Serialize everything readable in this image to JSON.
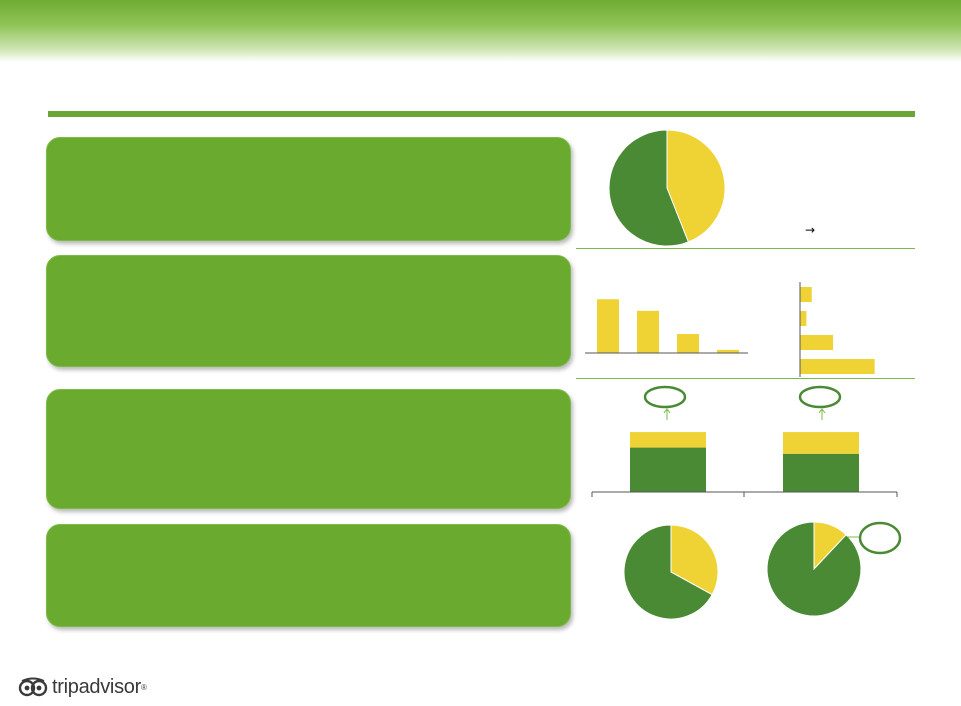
{
  "colors": {
    "brand_green": "#6aaa2f",
    "dark_green": "#4a8a35",
    "yellow": "#efd335",
    "rule_green": "#6aa635"
  },
  "footer": {
    "logo_text": "tripadvisor",
    "logo_mark": "®",
    "logo_icon": "owl-eyes-icon"
  },
  "arrow_symbol": "→",
  "chart_data": [
    {
      "type": "pie",
      "slices": [
        {
          "color": "yellow",
          "value": 0.44
        },
        {
          "color": "dark_green",
          "value": 0.56
        }
      ]
    },
    {
      "type": "bar",
      "orientation": "vertical",
      "values": [
        51,
        40,
        18,
        3
      ]
    },
    {
      "type": "bar",
      "orientation": "horizontal",
      "values": [
        11,
        6,
        31,
        70
      ]
    },
    {
      "type": "bar",
      "stacked": true,
      "series": [
        {
          "color": "dark_green",
          "values": [
            43
          ]
        },
        {
          "color": "yellow",
          "values": [
            15
          ]
        }
      ]
    },
    {
      "type": "bar",
      "stacked": true,
      "series": [
        {
          "color": "dark_green",
          "values": [
            37
          ]
        },
        {
          "color": "yellow",
          "values": [
            21
          ]
        }
      ]
    },
    {
      "type": "pie",
      "slices": [
        {
          "color": "yellow",
          "value": 0.33
        },
        {
          "color": "dark_green",
          "value": 0.67
        }
      ]
    },
    {
      "type": "pie",
      "slices": [
        {
          "color": "yellow",
          "value": 0.12
        },
        {
          "color": "dark_green",
          "value": 0.88
        }
      ]
    }
  ]
}
